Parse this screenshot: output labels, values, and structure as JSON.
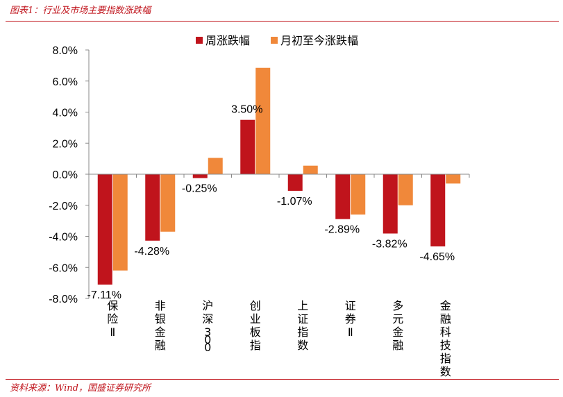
{
  "header": {
    "title": "图表1：行业及市场主要指数涨跌幅"
  },
  "footer": {
    "source": "资料来源：Wind，国盛证券研究所"
  },
  "colors": {
    "weekly": "#c0141c",
    "monthly": "#f0883a",
    "accent": "#c0141c"
  },
  "chart_data": {
    "type": "bar",
    "categories": [
      "保险Ⅱ",
      "非银金融",
      "沪深300",
      "创业板指",
      "上证指数",
      "证券Ⅱ",
      "多元金融",
      "金融科技指数"
    ],
    "series": [
      {
        "name": "周涨跌幅",
        "values": [
          -7.11,
          -4.28,
          -0.25,
          3.5,
          -1.07,
          -2.89,
          -3.82,
          -4.65
        ],
        "labels": [
          "-7.11%",
          "-4.28%",
          "-0.25%",
          "3.50%",
          "-1.07%",
          "-2.89%",
          "-3.82%",
          "-4.65%"
        ]
      },
      {
        "name": "月初至今涨跌幅",
        "values": [
          -6.2,
          -3.7,
          1.05,
          6.85,
          0.55,
          -2.6,
          -2.0,
          -0.6
        ]
      }
    ],
    "ylim": [
      -8,
      8
    ],
    "yticks": [
      "-8.0%",
      "-6.0%",
      "-4.0%",
      "-2.0%",
      "0.0%",
      "2.0%",
      "4.0%",
      "6.0%",
      "8.0%"
    ],
    "legend": "top",
    "grid": false
  }
}
